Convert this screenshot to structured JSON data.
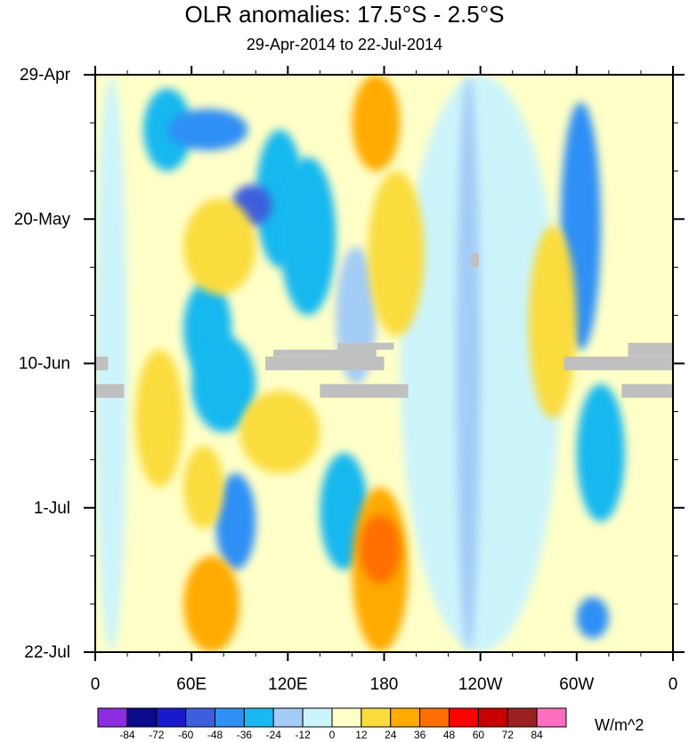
{
  "chart_data": {
    "type": "heatmap",
    "title": "OLR anomalies: 17.5°S - 2.5°S",
    "subtitle": "29-Apr-2014 to 22-Jul-2014",
    "x_ticks": [
      {
        "lon": 0,
        "label": "0"
      },
      {
        "lon": 60,
        "label": "60E"
      },
      {
        "lon": 120,
        "label": "120E"
      },
      {
        "lon": 180,
        "label": "180"
      },
      {
        "lon": 240,
        "label": "120W"
      },
      {
        "lon": 300,
        "label": "60W"
      },
      {
        "lon": 360,
        "label": "0"
      }
    ],
    "x_range": [
      0,
      360
    ],
    "y_ticks": [
      {
        "day": 0,
        "label": "29-Apr"
      },
      {
        "day": 21,
        "label": "20-May"
      },
      {
        "day": 42,
        "label": "10-Jun"
      },
      {
        "day": 63,
        "label": "1-Jul"
      },
      {
        "day": 84,
        "label": "22-Jul"
      }
    ],
    "y_range_days": [
      0,
      84
    ],
    "colorbar": {
      "units": "W/m^2",
      "levels": [
        -84,
        -72,
        -60,
        -48,
        -36,
        -24,
        -12,
        0,
        12,
        24,
        36,
        48,
        60,
        72,
        84
      ],
      "colors": [
        "#8b2be2",
        "#0a0a8c",
        "#1a1acd",
        "#3e5fdc",
        "#2f8ff5",
        "#18b8f0",
        "#a3ccf7",
        "#ccf4fb",
        "#ffffc8",
        "#fadc3c",
        "#ffaa00",
        "#ff6e00",
        "#ff0000",
        "#c80000",
        "#9b2020",
        "#ff6ebe"
      ]
    },
    "missing_color": "#c0c0c0",
    "regions": [
      {
        "lon": [
          175,
          230
        ],
        "day": [
          0,
          84
        ],
        "value": 8
      },
      {
        "lon": [
          190,
          290
        ],
        "day": [
          0,
          84
        ],
        "value": -6
      },
      {
        "lon": [
          0,
          20
        ],
        "day": [
          0,
          84
        ],
        "value": -10
      },
      {
        "lon": [
          225,
          240
        ],
        "day": [
          0,
          84
        ],
        "value": -14
      },
      {
        "lon": [
          30,
          60
        ],
        "day": [
          2,
          14
        ],
        "value": -30
      },
      {
        "lon": [
          45,
          95
        ],
        "day": [
          5,
          11
        ],
        "value": -40
      },
      {
        "lon": [
          55,
          85
        ],
        "day": [
          30,
          44
        ],
        "value": -30
      },
      {
        "lon": [
          100,
          130
        ],
        "day": [
          8,
          28
        ],
        "value": -36
      },
      {
        "lon": [
          85,
          110
        ],
        "day": [
          16,
          22
        ],
        "value": -50
      },
      {
        "lon": [
          115,
          150
        ],
        "day": [
          12,
          35
        ],
        "value": -30
      },
      {
        "lon": [
          60,
          100
        ],
        "day": [
          38,
          52
        ],
        "value": -36
      },
      {
        "lon": [
          150,
          175
        ],
        "day": [
          25,
          45
        ],
        "value": -24
      },
      {
        "lon": [
          140,
          170
        ],
        "day": [
          55,
          72
        ],
        "value": -36
      },
      {
        "lon": [
          75,
          100
        ],
        "day": [
          58,
          72
        ],
        "value": -40
      },
      {
        "lon": [
          290,
          315
        ],
        "day": [
          4,
          40
        ],
        "value": -40
      },
      {
        "lon": [
          300,
          330
        ],
        "day": [
          45,
          65
        ],
        "value": -30
      },
      {
        "lon": [
          300,
          320
        ],
        "day": [
          76,
          82
        ],
        "value": -40
      },
      {
        "lon": [
          160,
          190
        ],
        "day": [
          0,
          14
        ],
        "value": 30
      },
      {
        "lon": [
          170,
          205
        ],
        "day": [
          14,
          38
        ],
        "value": 22
      },
      {
        "lon": [
          55,
          100
        ],
        "day": [
          18,
          32
        ],
        "value": 20
      },
      {
        "lon": [
          55,
          80
        ],
        "day": [
          54,
          66
        ],
        "value": 22
      },
      {
        "lon": [
          160,
          195
        ],
        "day": [
          60,
          84
        ],
        "value": 26
      },
      {
        "lon": [
          165,
          190
        ],
        "day": [
          64,
          74
        ],
        "value": 38
      },
      {
        "lon": [
          55,
          90
        ],
        "day": [
          70,
          84
        ],
        "value": 26
      },
      {
        "lon": [
          90,
          140
        ],
        "day": [
          46,
          58
        ],
        "value": 16
      },
      {
        "lon": [
          270,
          300
        ],
        "day": [
          22,
          50
        ],
        "value": 18
      },
      {
        "lon": [
          325,
          360
        ],
        "day": [
          0,
          18
        ],
        "value": 10
      },
      {
        "lon": [
          25,
          55
        ],
        "day": [
          40,
          60
        ],
        "value": 14
      }
    ],
    "missing_blocks": [
      {
        "lon": [
          0,
          8
        ],
        "day": [
          41,
          43
        ]
      },
      {
        "lon": [
          0,
          18
        ],
        "day": [
          45,
          47
        ]
      },
      {
        "lon": [
          106,
          180
        ],
        "day": [
          41,
          43
        ]
      },
      {
        "lon": [
          111,
          175
        ],
        "day": [
          40,
          41
        ]
      },
      {
        "lon": [
          151,
          186
        ],
        "day": [
          39,
          40
        ]
      },
      {
        "lon": [
          140,
          195
        ],
        "day": [
          45,
          47
        ]
      },
      {
        "lon": [
          234,
          239
        ],
        "day": [
          26,
          28
        ]
      },
      {
        "lon": [
          292,
          360
        ],
        "day": [
          41,
          43
        ]
      },
      {
        "lon": [
          332,
          360
        ],
        "day": [
          39,
          41
        ]
      },
      {
        "lon": [
          328,
          360
        ],
        "day": [
          45,
          47
        ]
      }
    ]
  }
}
